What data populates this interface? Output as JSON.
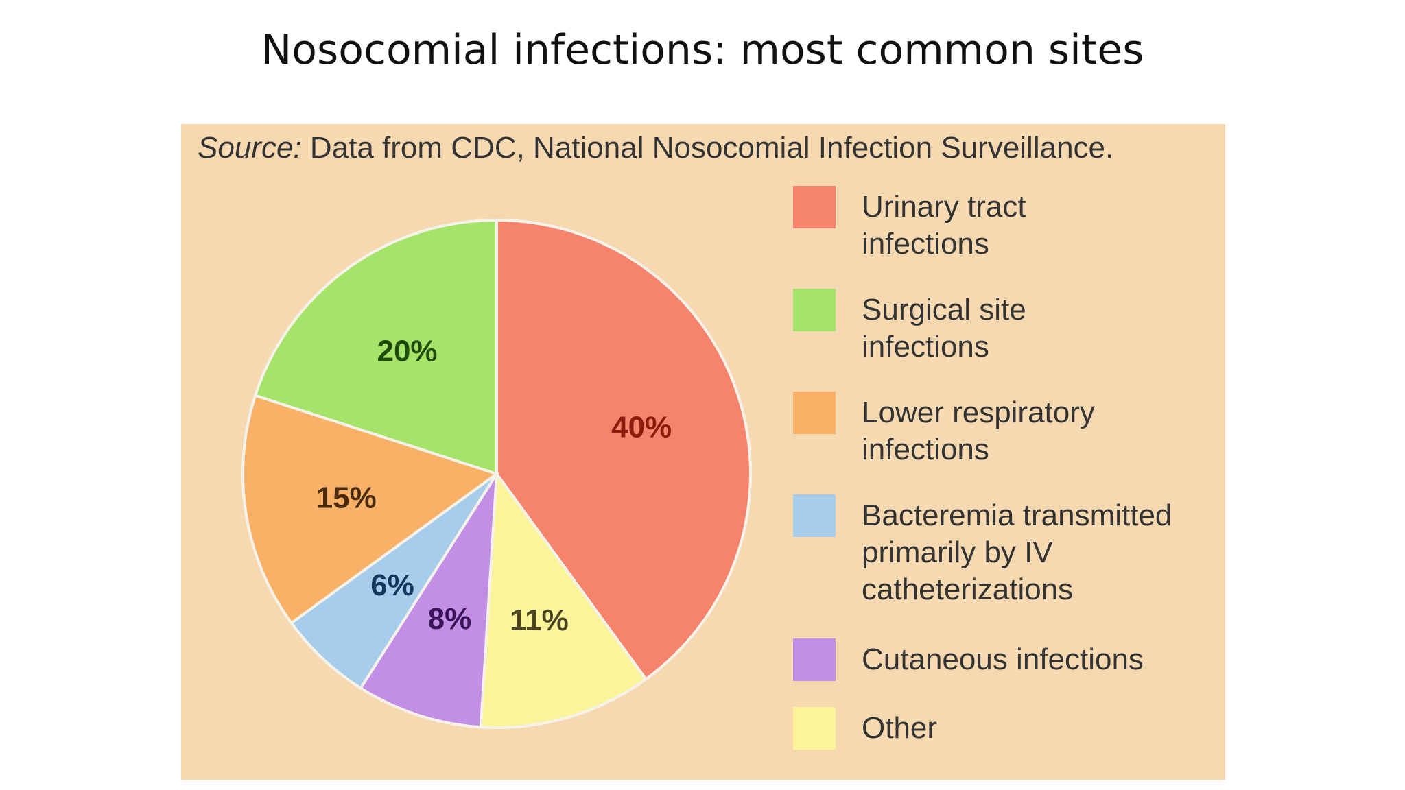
{
  "title": "Nosocomial infections: most common sites",
  "source": {
    "label": "Source:",
    "text": "Data from CDC, National Nosocomial Infection Surveillance."
  },
  "chart_data": {
    "type": "pie",
    "legend_position": "right",
    "slices": [
      {
        "name": "Urinary tract infections",
        "value": 40,
        "label": "40%",
        "color": "#f6836b",
        "label_color": "#8a1c0c"
      },
      {
        "name": "Other",
        "value": 11,
        "label": "11%",
        "color": "#fbf49a",
        "label_color": "#4a4420"
      },
      {
        "name": "Cutaneous infections",
        "value": 8,
        "label": "8%",
        "color": "#c28ee6",
        "label_color": "#3b1559"
      },
      {
        "name": "Bacteremia transmitted primarily by IV catheterizations",
        "value": 6,
        "label": "6%",
        "color": "#a7cdec",
        "label_color": "#14385c"
      },
      {
        "name": "Lower respiratory infections",
        "value": 15,
        "label": "15%",
        "color": "#f8b167",
        "label_color": "#4a2a08"
      },
      {
        "name": "Surgical site infections",
        "value": 20,
        "label": "20%",
        "color": "#a6e469",
        "label_color": "#1f4a08"
      }
    ],
    "legend": [
      {
        "lines": [
          "Urinary tract",
          "infections"
        ],
        "color": "#f6836b"
      },
      {
        "lines": [
          "Surgical site",
          "infections"
        ],
        "color": "#a6e469"
      },
      {
        "lines": [
          "Lower respiratory",
          "infections"
        ],
        "color": "#f8b167"
      },
      {
        "lines": [
          "Bacteremia transmitted",
          "primarily by IV",
          "catheterizations"
        ],
        "color": "#a7cdec"
      },
      {
        "lines": [
          "Cutaneous infections"
        ],
        "color": "#c28ee6"
      },
      {
        "lines": [
          "Other"
        ],
        "color": "#fbf49a"
      }
    ]
  }
}
